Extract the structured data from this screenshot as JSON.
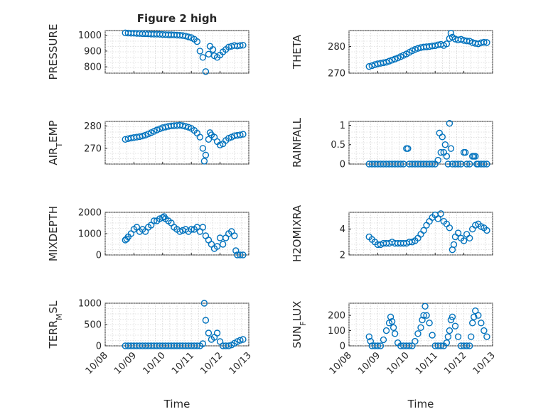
{
  "figure": {
    "title": "Figure 2 high",
    "xlabel": "Time",
    "xticklabels": [
      "10/08",
      "10/09",
      "10/10",
      "10/11",
      "10/12",
      "10/13"
    ],
    "marker_color": "#0072BD"
  },
  "chart_data": [
    {
      "type": "scatter",
      "title": "Figure 2 high",
      "ylabel": "PRESSURE",
      "xlabel": "",
      "ylim": [
        760,
        1030
      ],
      "yticks": [
        800,
        900,
        1000
      ],
      "x": [
        0.7,
        0.8,
        0.9,
        1.0,
        1.1,
        1.2,
        1.3,
        1.4,
        1.5,
        1.6,
        1.7,
        1.8,
        1.9,
        2.0,
        2.1,
        2.2,
        2.3,
        2.4,
        2.5,
        2.6,
        2.7,
        2.8,
        2.9,
        3.0,
        3.1,
        3.2,
        3.3,
        3.4,
        3.5,
        3.6,
        3.65,
        3.75,
        3.8,
        3.9,
        4.0,
        4.1,
        4.2,
        4.3,
        4.4,
        4.5,
        4.6,
        4.7,
        4.8
      ],
      "y": [
        1015,
        1014,
        1013,
        1013,
        1012,
        1011,
        1010,
        1010,
        1009,
        1008,
        1007,
        1007,
        1006,
        1005,
        1004,
        1003,
        1003,
        1002,
        1001,
        1000,
        998,
        995,
        990,
        985,
        975,
        960,
        900,
        860,
        770,
        880,
        930,
        910,
        870,
        860,
        875,
        895,
        910,
        925,
        930,
        935,
        932,
        935,
        937
      ]
    },
    {
      "type": "scatter",
      "ylabel": "THETA",
      "xlabel": "",
      "ylim": [
        270,
        286
      ],
      "yticks": [
        270,
        280
      ],
      "x": [
        0.7,
        0.8,
        0.9,
        1.0,
        1.1,
        1.2,
        1.3,
        1.4,
        1.5,
        1.6,
        1.7,
        1.8,
        1.9,
        2.0,
        2.1,
        2.2,
        2.3,
        2.4,
        2.5,
        2.6,
        2.7,
        2.8,
        2.9,
        3.0,
        3.1,
        3.2,
        3.3,
        3.4,
        3.5,
        3.55,
        3.6,
        3.7,
        3.8,
        3.9,
        4.0,
        4.1,
        4.2,
        4.3,
        4.4,
        4.5,
        4.6,
        4.7,
        4.8
      ],
      "y": [
        272.5,
        272.8,
        273.2,
        273.5,
        273.7,
        273.9,
        274.1,
        274.5,
        274.9,
        275.3,
        275.7,
        276.2,
        276.7,
        277.2,
        277.8,
        278.4,
        278.9,
        279.3,
        279.6,
        279.8,
        279.9,
        280.0,
        280.2,
        280.3,
        280.6,
        280.8,
        280.4,
        281.0,
        283.0,
        285.0,
        283.5,
        282.8,
        282.5,
        282.7,
        282.3,
        282.1,
        282.0,
        281.5,
        281.2,
        281.0,
        281.4,
        281.6,
        281.5
      ]
    },
    {
      "type": "scatter",
      "ylabel": "AIR_TEMP",
      "xlabel": "",
      "ylim": [
        263,
        282
      ],
      "yticks": [
        270,
        280
      ],
      "x": [
        0.7,
        0.8,
        0.9,
        1.0,
        1.1,
        1.2,
        1.3,
        1.4,
        1.5,
        1.6,
        1.7,
        1.8,
        1.9,
        2.0,
        2.1,
        2.2,
        2.3,
        2.4,
        2.5,
        2.6,
        2.7,
        2.8,
        2.9,
        3.0,
        3.1,
        3.2,
        3.3,
        3.4,
        3.45,
        3.5,
        3.6,
        3.65,
        3.7,
        3.8,
        3.9,
        4.0,
        4.1,
        4.2,
        4.3,
        4.4,
        4.5,
        4.6,
        4.7,
        4.8
      ],
      "y": [
        274.0,
        274.3,
        274.6,
        274.8,
        275.0,
        275.2,
        275.5,
        275.9,
        276.4,
        277.0,
        277.6,
        278.2,
        278.7,
        279.2,
        279.5,
        279.8,
        280.0,
        280.1,
        280.2,
        280.3,
        280.1,
        279.8,
        279.4,
        278.9,
        278.0,
        276.8,
        275.0,
        270.0,
        264.3,
        267.0,
        274.0,
        277.0,
        276.0,
        275.0,
        273.0,
        271.5,
        272.0,
        273.5,
        274.5,
        275.0,
        275.6,
        275.8,
        276.0,
        276.3
      ]
    },
    {
      "type": "scatter",
      "ylabel": "RAINFALL",
      "xlabel": "",
      "ylim": [
        0,
        1.1
      ],
      "yticks": [
        0,
        0.5,
        1
      ],
      "x": [
        0.7,
        0.8,
        0.9,
        1.0,
        1.1,
        1.2,
        1.3,
        1.4,
        1.5,
        1.6,
        1.7,
        1.8,
        1.9,
        2.0,
        2.05,
        2.1,
        2.2,
        2.3,
        2.4,
        2.5,
        2.6,
        2.7,
        2.8,
        2.9,
        3.0,
        3.1,
        3.15,
        3.2,
        3.25,
        3.3,
        3.35,
        3.4,
        3.45,
        3.5,
        3.55,
        3.6,
        3.7,
        3.8,
        3.9,
        4.0,
        4.05,
        4.1,
        4.2,
        4.3,
        4.35,
        4.4,
        4.45,
        4.5,
        4.6,
        4.7,
        4.8
      ],
      "y": [
        0,
        0,
        0,
        0,
        0,
        0,
        0,
        0,
        0,
        0,
        0,
        0,
        0,
        0.4,
        0.4,
        0,
        0,
        0,
        0,
        0,
        0,
        0,
        0,
        0,
        0,
        0.1,
        0.8,
        0.3,
        0.7,
        0.3,
        0.5,
        0.2,
        0,
        1.05,
        0.4,
        0,
        0,
        0,
        0,
        0.3,
        0.3,
        0,
        0,
        0.2,
        0.2,
        0.2,
        0,
        0,
        0,
        0,
        0
      ]
    },
    {
      "type": "scatter",
      "ylabel": "MIXDEPTH",
      "xlabel": "",
      "ylim": [
        0,
        2000
      ],
      "yticks": [
        0,
        1000,
        2000
      ],
      "x": [
        0.7,
        0.75,
        0.8,
        0.9,
        1.0,
        1.1,
        1.2,
        1.3,
        1.4,
        1.5,
        1.6,
        1.7,
        1.8,
        1.9,
        2.0,
        2.05,
        2.1,
        2.2,
        2.3,
        2.4,
        2.5,
        2.6,
        2.7,
        2.8,
        2.9,
        3.0,
        3.1,
        3.2,
        3.3,
        3.4,
        3.5,
        3.6,
        3.7,
        3.8,
        3.9,
        4.0,
        4.1,
        4.2,
        4.3,
        4.4,
        4.5,
        4.55,
        4.6,
        4.7,
        4.8
      ],
      "y": [
        700,
        750,
        850,
        1000,
        1200,
        1300,
        1100,
        1200,
        1100,
        1300,
        1400,
        1600,
        1600,
        1700,
        1750,
        1800,
        1700,
        1600,
        1500,
        1300,
        1200,
        1100,
        1150,
        1200,
        1100,
        1200,
        1200,
        1300,
        1100,
        1300,
        900,
        700,
        500,
        300,
        400,
        800,
        500,
        800,
        1000,
        1100,
        900,
        200,
        0,
        0,
        0
      ]
    },
    {
      "type": "scatter",
      "ylabel": "H2OMIXRA",
      "xlabel": "",
      "ylim": [
        2,
        5.3
      ],
      "yticks": [
        2,
        4
      ],
      "x": [
        0.7,
        0.8,
        0.9,
        1.0,
        1.1,
        1.2,
        1.3,
        1.4,
        1.5,
        1.6,
        1.7,
        1.8,
        1.9,
        2.0,
        2.1,
        2.2,
        2.3,
        2.4,
        2.5,
        2.6,
        2.7,
        2.8,
        2.9,
        3.0,
        3.1,
        3.2,
        3.3,
        3.4,
        3.5,
        3.6,
        3.65,
        3.7,
        3.8,
        3.9,
        4.0,
        4.1,
        4.2,
        4.3,
        4.4,
        4.5,
        4.6,
        4.7,
        4.8
      ],
      "y": [
        3.4,
        3.2,
        3.0,
        2.8,
        2.8,
        2.9,
        2.9,
        2.9,
        3.0,
        2.9,
        2.9,
        2.9,
        2.9,
        2.9,
        3.0,
        3.0,
        3.1,
        3.3,
        3.6,
        3.9,
        4.3,
        4.6,
        4.9,
        5.1,
        4.8,
        5.2,
        4.6,
        4.4,
        4.1,
        2.4,
        2.8,
        3.4,
        3.7,
        3.3,
        3.1,
        3.6,
        3.3,
        4.0,
        4.3,
        4.4,
        4.2,
        4.1,
        3.9
      ]
    },
    {
      "type": "scatter",
      "ylabel": "TERR_MSL",
      "xlabel": "",
      "ylim": [
        0,
        1000
      ],
      "yticks": [
        0,
        500,
        1000
      ],
      "x": [
        0.7,
        0.8,
        0.9,
        1.0,
        1.1,
        1.2,
        1.3,
        1.4,
        1.5,
        1.6,
        1.7,
        1.8,
        1.9,
        2.0,
        2.1,
        2.2,
        2.3,
        2.4,
        2.5,
        2.6,
        2.7,
        2.8,
        2.9,
        3.0,
        3.1,
        3.2,
        3.3,
        3.4,
        3.45,
        3.5,
        3.6,
        3.7,
        3.8,
        3.9,
        4.0,
        4.1,
        4.2,
        4.3,
        4.4,
        4.5,
        4.6,
        4.7,
        4.8
      ],
      "y": [
        0,
        0,
        0,
        0,
        0,
        0,
        0,
        0,
        0,
        0,
        0,
        0,
        0,
        0,
        0,
        0,
        0,
        0,
        0,
        0,
        0,
        0,
        0,
        0,
        0,
        0,
        0,
        50,
        1000,
        600,
        300,
        150,
        200,
        300,
        100,
        0,
        0,
        0,
        20,
        60,
        100,
        130,
        150
      ]
    },
    {
      "type": "scatter",
      "ylabel": "SUN_FLUX",
      "xlabel": "Time",
      "ylim": [
        0,
        280
      ],
      "yticks": [
        0,
        100,
        200
      ],
      "x": [
        0.7,
        0.75,
        0.8,
        0.9,
        1.0,
        1.1,
        1.2,
        1.3,
        1.4,
        1.45,
        1.5,
        1.55,
        1.6,
        1.7,
        1.8,
        1.9,
        2.0,
        2.1,
        2.2,
        2.3,
        2.4,
        2.5,
        2.55,
        2.6,
        2.65,
        2.7,
        2.8,
        2.9,
        3.0,
        3.1,
        3.2,
        3.3,
        3.4,
        3.45,
        3.5,
        3.55,
        3.6,
        3.7,
        3.8,
        3.9,
        4.0,
        4.1,
        4.2,
        4.25,
        4.3,
        4.35,
        4.4,
        4.5,
        4.6,
        4.7,
        4.8
      ],
      "y": [
        60,
        30,
        0,
        0,
        0,
        0,
        40,
        100,
        150,
        190,
        160,
        120,
        80,
        20,
        0,
        0,
        0,
        0,
        0,
        30,
        80,
        120,
        170,
        200,
        260,
        200,
        150,
        70,
        0,
        0,
        0,
        0,
        20,
        60,
        100,
        170,
        190,
        130,
        60,
        0,
        0,
        0,
        0,
        60,
        150,
        190,
        230,
        200,
        150,
        100,
        60
      ]
    }
  ]
}
